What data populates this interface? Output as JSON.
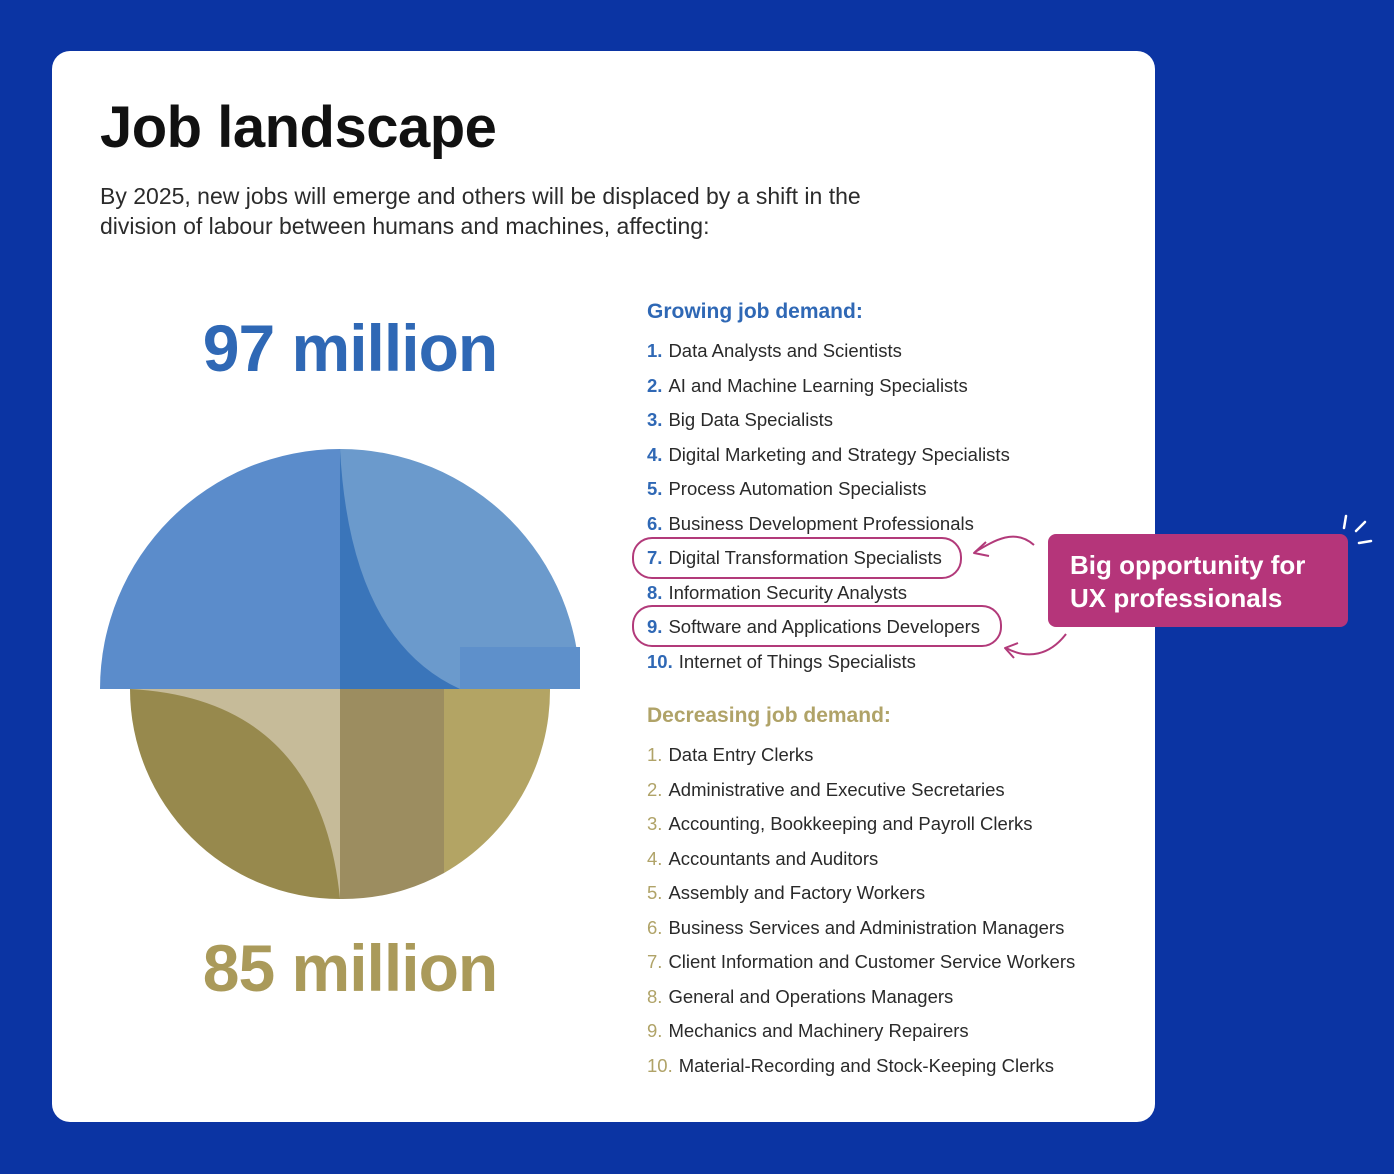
{
  "header": {
    "title": "Job landscape",
    "subtitle": "By 2025, new jobs will emerge and others will be displaced by a shift in the division of labour between humans and machines, affecting:"
  },
  "stats": {
    "growing_total": "97 million",
    "decreasing_total": "85 million"
  },
  "growing": {
    "heading": "Growing job demand:",
    "items": [
      {
        "rank": "1.",
        "label": "Data Analysts and Scientists"
      },
      {
        "rank": "2.",
        "label": "AI and Machine Learning Specialists"
      },
      {
        "rank": "3.",
        "label": "Big Data Specialists"
      },
      {
        "rank": "4.",
        "label": "Digital Marketing and Strategy Specialists"
      },
      {
        "rank": "5.",
        "label": "Process Automation Specialists"
      },
      {
        "rank": "6.",
        "label": "Business Development Professionals"
      },
      {
        "rank": "7.",
        "label": "Digital Transformation Specialists"
      },
      {
        "rank": "8.",
        "label": "Information Security Analysts"
      },
      {
        "rank": "9.",
        "label": "Software and Applications Developers"
      },
      {
        "rank": "10.",
        "label": "Internet of Things Specialists"
      }
    ]
  },
  "decreasing": {
    "heading": "Decreasing job demand:",
    "items": [
      {
        "rank": "1.",
        "label": "Data Entry Clerks"
      },
      {
        "rank": "2.",
        "label": "Administrative and Executive Secretaries"
      },
      {
        "rank": "3.",
        "label": "Accounting, Bookkeeping and Payroll Clerks"
      },
      {
        "rank": "4.",
        "label": "Accountants and Auditors"
      },
      {
        "rank": "5.",
        "label": "Assembly and Factory Workers"
      },
      {
        "rank": "6.",
        "label": "Business Services and Administration Managers"
      },
      {
        "rank": "7.",
        "label": "Client Information and Customer Service Workers"
      },
      {
        "rank": "8.",
        "label": "General and Operations Managers"
      },
      {
        "rank": "9.",
        "label": "Mechanics and Machinery Repairers"
      },
      {
        "rank": "10.",
        "label": "Material-Recording and Stock-Keeping Clerks"
      }
    ]
  },
  "callout": {
    "line1": "Big opportunity for",
    "line2": "UX professionals"
  },
  "colors": {
    "background": "#0b34a3",
    "growing_blue": "#2f68b5",
    "decreasing_gold": "#aa9a5a",
    "callout_magenta": "#b5357a"
  }
}
